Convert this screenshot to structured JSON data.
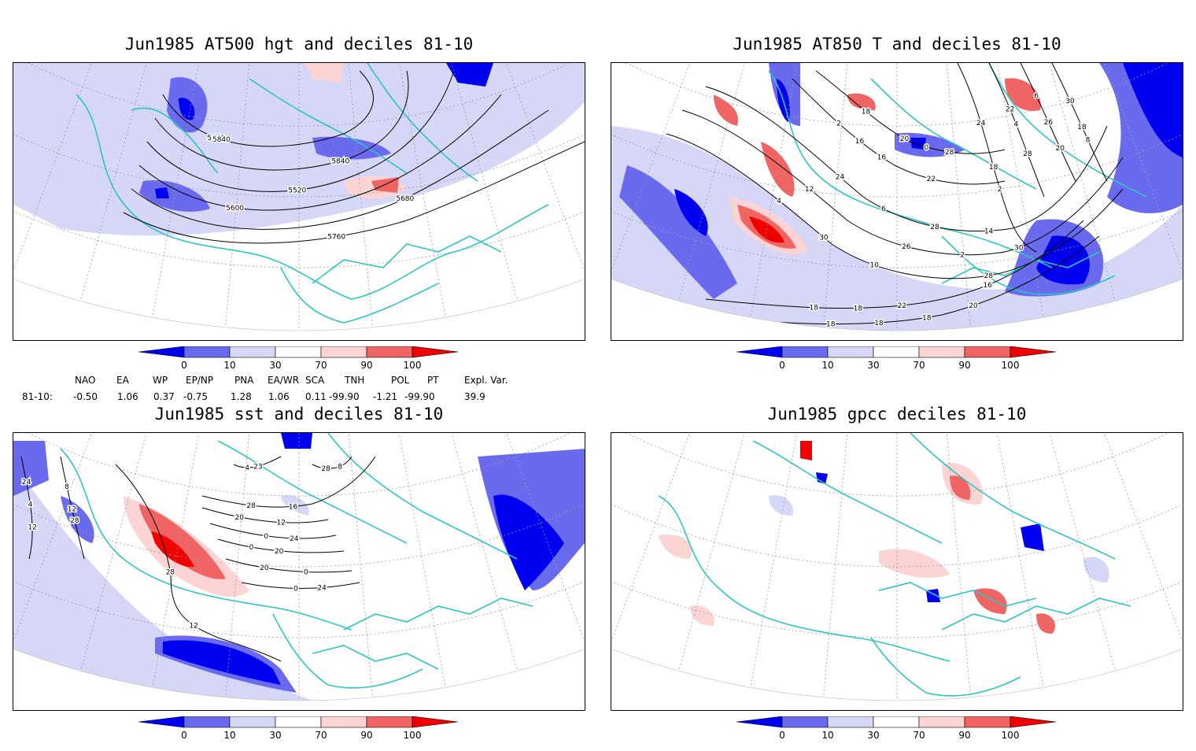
{
  "panels": [
    {
      "id": "at500",
      "title": "Jun1985 AT500 hgt and deciles 81-10",
      "contour_labels": [
        "5440",
        "5840",
        "5520",
        "5600",
        "5680",
        "5760",
        "5840"
      ]
    },
    {
      "id": "at850",
      "title": "Jun1985 AT850 T and deciles 81-10",
      "contour_labels": [
        "4",
        "2",
        "6",
        "2",
        "0",
        "18",
        "18",
        "2",
        "4",
        "6",
        "8",
        "10",
        "12",
        "14",
        "16",
        "18",
        "20",
        "22",
        "24",
        "28",
        "26",
        "30",
        "28",
        "26",
        "24",
        "22",
        "20",
        "18",
        "16",
        "18",
        "22",
        "20",
        "18",
        "30",
        "30",
        "28",
        "16",
        "28",
        "18",
        "18"
      ]
    },
    {
      "id": "sst",
      "title": "Jun1985 sst and deciles 81-10",
      "contour_labels": [
        "24",
        "28",
        "28",
        "28",
        "12",
        "0",
        "0",
        "0",
        "0",
        "4",
        "8",
        "4",
        "8",
        "12",
        "16",
        "20",
        "24",
        "20",
        "20",
        "24",
        "23",
        "28",
        "12",
        "12"
      ]
    },
    {
      "id": "gpcc",
      "title": "Jun1985 gpcc deciles 81-10",
      "contour_labels": []
    }
  ],
  "colorbar": {
    "ticks": [
      "0",
      "10",
      "30",
      "70",
      "90",
      "100"
    ],
    "colors": [
      "#0000f0",
      "#6a6aef",
      "#d6d6f7",
      "#ffffff",
      "#fcd4d4",
      "#f06464",
      "#f00000"
    ]
  },
  "indices": {
    "headers": [
      "NAO",
      "EA",
      "WP",
      "EP/NP",
      "PNA",
      "EA/WR",
      "SCA",
      "TNH",
      "POL",
      "PT",
      "Expl. Var."
    ],
    "row_label": "81-10:",
    "values": [
      "-0.50",
      "1.06",
      "0.37",
      "-0.75",
      "1.28",
      "1.06",
      "0.11",
      "-99.90",
      "-1.21",
      "-99.90",
      "39.9"
    ]
  },
  "colors": {
    "coast": "#2fc4c4",
    "contour": "#000000",
    "graticule": "#9a9a9a"
  }
}
